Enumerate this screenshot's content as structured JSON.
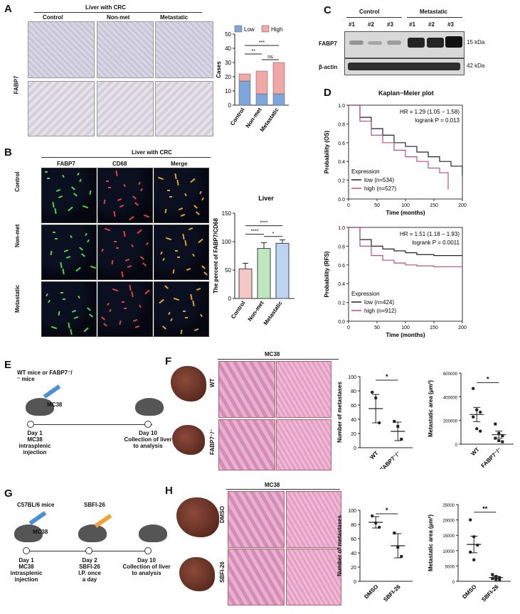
{
  "panels": {
    "A": {
      "label": "A",
      "header": "Liver with CRC",
      "row_label": "FABP7",
      "cols": [
        "Control",
        "Non-met",
        "Metastatic"
      ],
      "chart_data": {
        "type": "bar",
        "ylabel": "Cases",
        "ylim": [
          0,
          50
        ],
        "yticks": [
          "0",
          "10",
          "20",
          "30",
          "40",
          "50"
        ],
        "categories": [
          "Control",
          "Non-met",
          "Metastatic"
        ],
        "series": [
          {
            "name": "Low",
            "values": [
              17,
              8,
              8
            ],
            "color": "#7ea6dc"
          },
          {
            "name": "High",
            "values": [
              5,
              16,
              22
            ],
            "color": "#f2a7a7"
          }
        ],
        "annotations": [
          "***",
          "**",
          "ns"
        ]
      }
    },
    "B": {
      "label": "B",
      "header": "Liver with CRC",
      "cols": [
        "FABP7",
        "CD68",
        "Merge"
      ],
      "rows": [
        "Control",
        "Non-met",
        "Metastatic"
      ],
      "chart_data": {
        "type": "bar",
        "title": "Liver",
        "ylabel": "The percent of FABP7/CD68",
        "ylim": [
          0,
          150
        ],
        "yticks": [
          "0",
          "50",
          "100",
          "150"
        ],
        "categories": [
          "Control",
          "Non-met",
          "Metastatic"
        ],
        "values": [
          52,
          88,
          97
        ],
        "errors": [
          10,
          10,
          6
        ],
        "colors": [
          "#f5c7c7",
          "#bfe6bf",
          "#bcd3f2"
        ],
        "annotations": [
          "****",
          "****",
          "*"
        ]
      }
    },
    "C": {
      "label": "C",
      "groups": [
        "Control",
        "Metastatic"
      ],
      "lanes": [
        "#1",
        "#2",
        "#3",
        "#1",
        "#2",
        "#3"
      ],
      "rows": [
        {
          "name": "FABP7",
          "kda": "15 kDa"
        },
        {
          "name": "β-actin",
          "kda": "42 kDa"
        }
      ]
    },
    "D": {
      "label": "D",
      "title": "Kaplan−Meier plot",
      "plots": [
        {
          "ylabel": "Probability (OS)",
          "xlabel": "Time (months)",
          "hr": "HR = 1.29 (1.05 − 1.58)",
          "logrank": "logrank P = 0.013",
          "legend_title": "Expression",
          "legend": [
            "low (n=534)",
            "high (n=527)"
          ],
          "xticks": [
            "0",
            "50",
            "100",
            "150",
            "200"
          ],
          "yticks": [
            "0.0",
            "0.2",
            "0.4",
            "0.6",
            "0.8",
            "1.0"
          ]
        },
        {
          "ylabel": "Probability (RFS)",
          "xlabel": "Time (months)",
          "hr": "HR = 1.51 (1.18 − 1.93)",
          "logrank": "logrank P = 0.0011",
          "legend_title": "Expression",
          "legend": [
            "low (n=424)",
            "high (n=912)"
          ],
          "xticks": [
            "0",
            "50",
            "100",
            "150",
            "200"
          ],
          "yticks": [
            "0.0",
            "0.2",
            "0.4",
            "0.6",
            "0.8",
            "1.0"
          ]
        }
      ],
      "colors": {
        "low": "#222222",
        "high": "#c0506e"
      }
    },
    "E": {
      "label": "E",
      "mice": "WT mice or FABP7⁻/⁻ mice",
      "cell": "MC38",
      "day1": "Day 1",
      "day1_desc": [
        "MC38",
        "intrasplenic",
        "injection"
      ],
      "day10": "Day 10",
      "day10_desc": [
        "Collection of liver",
        "to analysis"
      ]
    },
    "F": {
      "label": "F",
      "header": "MC38",
      "rows": [
        "WT",
        "FABP7⁻/⁻"
      ],
      "chart1": {
        "type": "scatter",
        "ylabel": "Number of metastases",
        "ylim": [
          0,
          100
        ],
        "yticks": [
          "0",
          "20",
          "40",
          "60",
          "80",
          "100"
        ],
        "categories": [
          "WT",
          "FABP7⁻/⁻"
        ],
        "means": [
          55,
          23
        ],
        "errors": [
          20,
          13
        ],
        "points": [
          [
            78,
            70,
            35
          ],
          [
            37,
            30,
            12
          ]
        ],
        "sig": "*"
      },
      "chart2": {
        "type": "scatter",
        "ylabel": "Metastatic area (μm²)",
        "ylim": [
          0,
          600000
        ],
        "yticks": [
          "0",
          "200000",
          "400000",
          "600000"
        ],
        "categories": [
          "WT",
          "FABP7⁻/⁻"
        ],
        "means": [
          250000,
          80000
        ],
        "errors": [
          60000,
          30000
        ],
        "points": [
          [
            470000,
            290000,
            270000,
            230000,
            130000,
            110000
          ],
          [
            170000,
            90000,
            70000,
            50000,
            30000,
            20000
          ]
        ],
        "sig": "*"
      }
    },
    "G": {
      "label": "G",
      "mice": "C57BL/6 mice",
      "cell": "MC38",
      "drug": "SBFI-26",
      "day1": "Day 1",
      "day1_desc": [
        "MC38",
        "intrasplenic",
        "injection"
      ],
      "day2": "Day 2",
      "day2_desc": [
        "SBFI-26",
        "I.P. once",
        "a day"
      ],
      "day10": "Day 10",
      "day10_desc": [
        "Collection of liver",
        "to analysis"
      ]
    },
    "H": {
      "label": "H",
      "header": "MC38",
      "rows": [
        "DMSO",
        "SBFI-26"
      ],
      "chart1": {
        "type": "scatter",
        "ylabel": "Number of metastases",
        "ylim": [
          0,
          100
        ],
        "yticks": [
          "0",
          "20",
          "40",
          "60",
          "80",
          "100"
        ],
        "categories": [
          "DMSO",
          "SBFI-26"
        ],
        "means": [
          83,
          50
        ],
        "errors": [
          8,
          17
        ],
        "points": [
          [
            92,
            82,
            76
          ],
          [
            68,
            48,
            35
          ]
        ],
        "sig": "*"
      },
      "chart2": {
        "type": "scatter",
        "ylabel": "Metastatic area (μm²)",
        "ylim": [
          0,
          25000
        ],
        "yticks": [
          "0",
          "5000",
          "10000",
          "15000",
          "20000",
          "25000"
        ],
        "categories": [
          "DMSO",
          "SBFI-26"
        ],
        "means": [
          12000,
          1200
        ],
        "errors": [
          2700,
          400
        ],
        "points": [
          [
            20000,
            14500,
            11800,
            9500,
            7000
          ],
          [
            2200,
            1600,
            1200,
            900,
            600,
            400
          ]
        ],
        "sig": "**"
      }
    }
  }
}
